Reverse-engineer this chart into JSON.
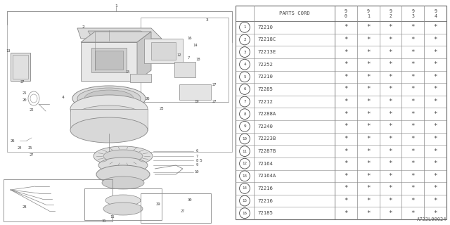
{
  "bg_color": "#ffffff",
  "diagram_id": "A722L00024",
  "parts": [
    {
      "num": "1",
      "code": "72210"
    },
    {
      "num": "2",
      "code": "72218C"
    },
    {
      "num": "3",
      "code": "72213E"
    },
    {
      "num": "4",
      "code": "72252"
    },
    {
      "num": "5",
      "code": "72210"
    },
    {
      "num": "6",
      "code": "72285"
    },
    {
      "num": "7",
      "code": "72212"
    },
    {
      "num": "8",
      "code": "72288A"
    },
    {
      "num": "9",
      "code": "72240"
    },
    {
      "num": "10",
      "code": "72223B"
    },
    {
      "num": "11",
      "code": "72287B"
    },
    {
      "num": "12",
      "code": "72164"
    },
    {
      "num": "13",
      "code": "72164A"
    },
    {
      "num": "14",
      "code": "72216"
    },
    {
      "num": "15",
      "code": "72216"
    },
    {
      "num": "16",
      "code": "72185"
    }
  ],
  "col_headers": [
    "9\n0",
    "9\n1",
    "9\n2",
    "9\n3",
    "9\n4"
  ],
  "header_label": "PARTS CORD",
  "text_color": "#444444",
  "line_color": "#888888",
  "draw_color": "#888888",
  "font_size": 5.2,
  "asterisk": "*"
}
